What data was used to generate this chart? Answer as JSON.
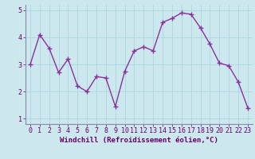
{
  "x": [
    0,
    1,
    2,
    3,
    4,
    5,
    6,
    7,
    8,
    9,
    10,
    11,
    12,
    13,
    14,
    15,
    16,
    17,
    18,
    19,
    20,
    21,
    22,
    23
  ],
  "y": [
    3.0,
    4.1,
    3.6,
    2.7,
    3.2,
    2.2,
    2.0,
    2.55,
    2.5,
    1.45,
    2.75,
    3.5,
    3.65,
    3.5,
    4.55,
    4.7,
    4.9,
    4.85,
    4.35,
    3.75,
    3.05,
    2.95,
    2.35,
    1.4
  ],
  "line_color": "#883399",
  "marker": "+",
  "markersize": 4,
  "linewidth": 1.0,
  "markeredgewidth": 1.0,
  "xlabel": "Windchill (Refroidissement éolien,°C)",
  "xlim": [
    -0.5,
    23.5
  ],
  "ylim": [
    0.8,
    5.2
  ],
  "yticks": [
    1,
    2,
    3,
    4,
    5
  ],
  "xticks": [
    0,
    1,
    2,
    3,
    4,
    5,
    6,
    7,
    8,
    9,
    10,
    11,
    12,
    13,
    14,
    15,
    16,
    17,
    18,
    19,
    20,
    21,
    22,
    23
  ],
  "bg_color": "#cce8ee",
  "grid_color": "#b0d8e0",
  "tick_label_color": "#660066",
  "xlabel_color": "#660066",
  "xlabel_fontsize": 6.5,
  "tick_fontsize": 6.0,
  "spine_color": "#8888aa"
}
